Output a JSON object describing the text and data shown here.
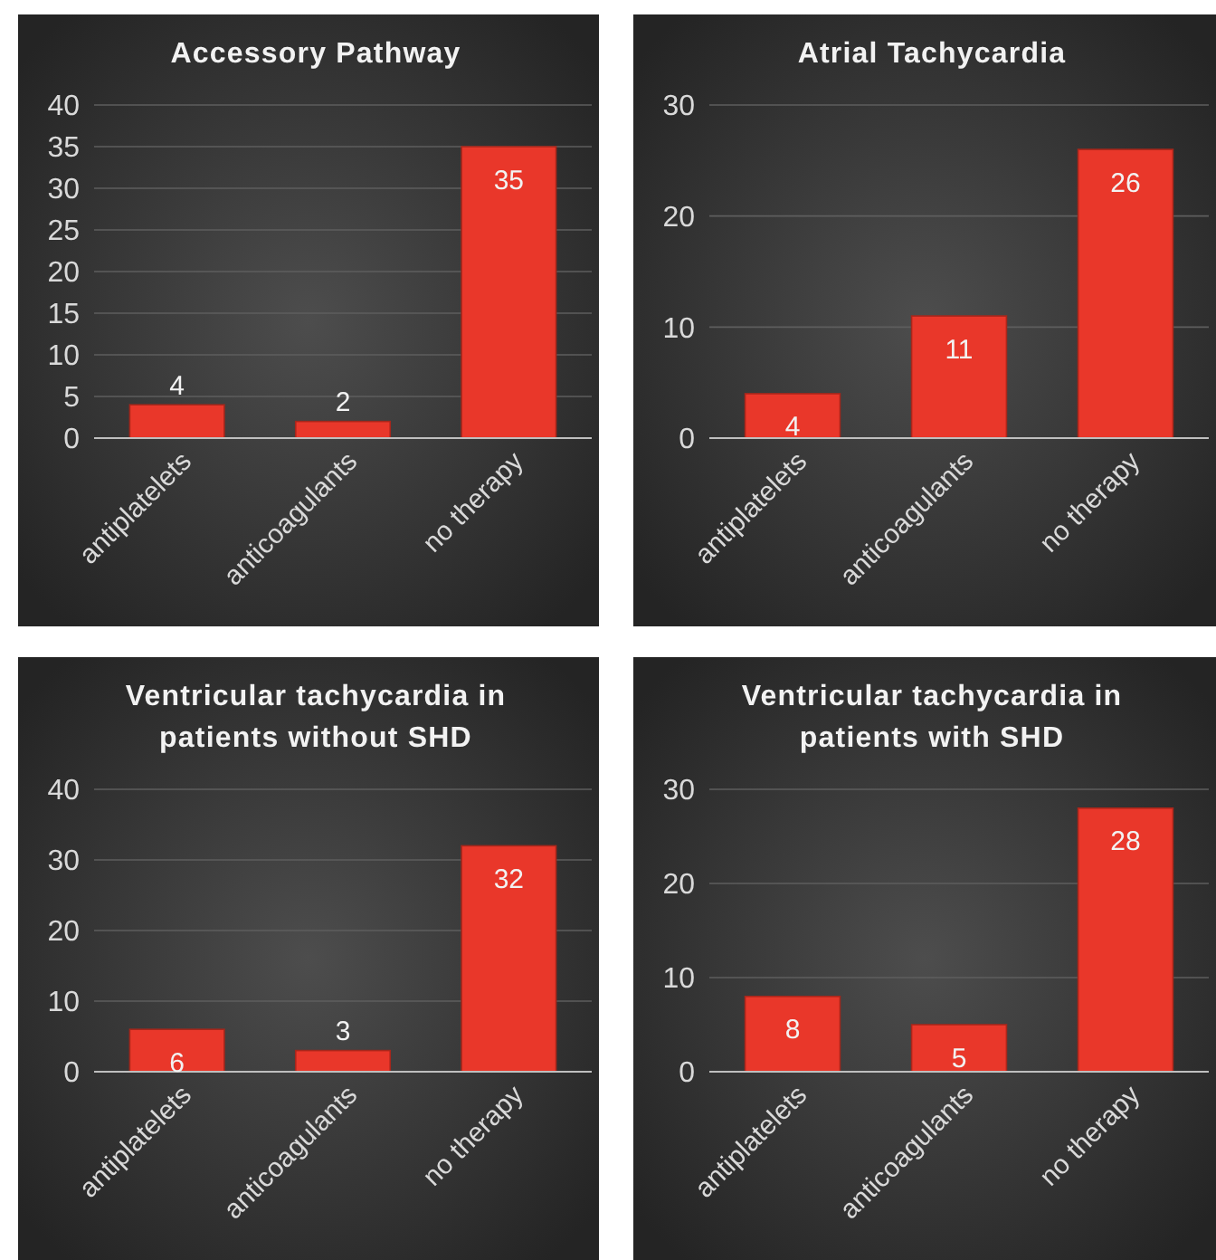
{
  "chart_data": [
    {
      "type": "bar",
      "title": "Accessory Pathway",
      "categories": [
        "antiplatelets",
        "anticoagulants",
        "no therapy"
      ],
      "values": [
        4,
        2,
        35
      ],
      "color": "#e9372a",
      "ylim": [
        0,
        40
      ],
      "yticks": [
        0,
        5,
        10,
        15,
        20,
        25,
        30,
        35,
        40
      ],
      "grid": "y",
      "data_labels": true
    },
    {
      "type": "bar",
      "title": "Atrial Tachycardia",
      "categories": [
        "antiplatelets",
        "anticoagulants",
        "no therapy"
      ],
      "values": [
        4,
        11,
        26
      ],
      "color": "#e9372a",
      "ylim": [
        0,
        30
      ],
      "yticks": [
        0,
        10,
        20,
        30
      ],
      "grid": "y",
      "data_labels": true
    },
    {
      "type": "bar",
      "title": "Ventricular tachycardia in patients without SHD",
      "categories": [
        "antiplatelets",
        "anticoagulants",
        "no therapy"
      ],
      "values": [
        6,
        3,
        32
      ],
      "color": "#e9372a",
      "ylim": [
        0,
        40
      ],
      "yticks": [
        0,
        10,
        20,
        30,
        40
      ],
      "grid": "y",
      "data_labels": true
    },
    {
      "type": "bar",
      "title": "Ventricular tachycardia in patients with SHD",
      "categories": [
        "antiplatelets",
        "anticoagulants",
        "no therapy"
      ],
      "values": [
        8,
        5,
        28
      ],
      "color": "#e9372a",
      "ylim": [
        0,
        30
      ],
      "yticks": [
        0,
        10,
        20,
        30
      ],
      "grid": "y",
      "data_labels": true
    }
  ]
}
